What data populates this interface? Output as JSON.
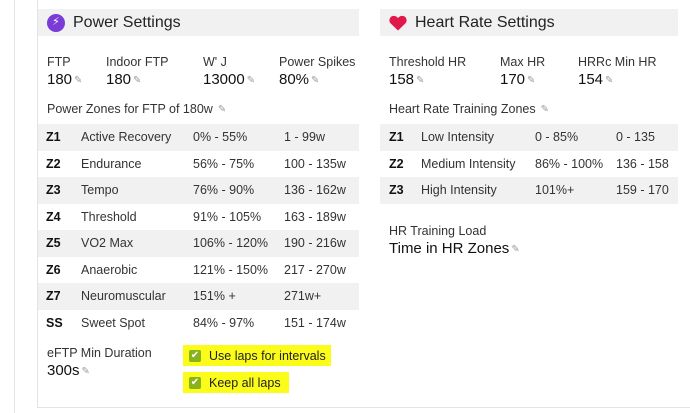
{
  "power": {
    "title": "Power Settings",
    "fields": [
      {
        "label": "FTP",
        "value": "180"
      },
      {
        "label": "Indoor FTP",
        "value": "180"
      },
      {
        "label": "W' J",
        "value": "13000"
      },
      {
        "label": "Power Spikes",
        "value": "80%"
      }
    ],
    "zones_title": "Power Zones for FTP of 180w",
    "zones": [
      {
        "code": "Z1",
        "name": "Active Recovery",
        "pct": "0% - 55%",
        "range": "1 - 99w"
      },
      {
        "code": "Z2",
        "name": "Endurance",
        "pct": "56% - 75%",
        "range": "100 - 135w"
      },
      {
        "code": "Z3",
        "name": "Tempo",
        "pct": "76% - 90%",
        "range": "136 - 162w"
      },
      {
        "code": "Z4",
        "name": "Threshold",
        "pct": "91% - 105%",
        "range": "163 - 189w"
      },
      {
        "code": "Z5",
        "name": "VO2 Max",
        "pct": "106% - 120%",
        "range": "190 - 216w"
      },
      {
        "code": "Z6",
        "name": "Anaerobic",
        "pct": "121% - 150%",
        "range": "217 - 270w"
      },
      {
        "code": "Z7",
        "name": "Neuromuscular",
        "pct": "151% +",
        "range": "271w+"
      },
      {
        "code": "SS",
        "name": "Sweet Spot",
        "pct": "84% - 97%",
        "range": "151 - 174w"
      }
    ],
    "eftp_label": "eFTP Min Duration",
    "eftp_value": "300s",
    "checkbox_laps": "Use laps for intervals",
    "checkbox_keep": "Keep all laps"
  },
  "hr": {
    "title": "Heart Rate Settings",
    "fields": [
      {
        "label": "Threshold HR",
        "value": "158"
      },
      {
        "label": "Max HR",
        "value": "170"
      },
      {
        "label": "HRRc Min HR",
        "value": "154"
      }
    ],
    "zones_title": "Heart Rate Training Zones",
    "zones": [
      {
        "code": "Z1",
        "name": "Low Intensity",
        "pct": "0 - 85%",
        "range": "0 - 135"
      },
      {
        "code": "Z2",
        "name": "Medium Intensity",
        "pct": "86% - 100%",
        "range": "136 - 158"
      },
      {
        "code": "Z3",
        "name": "High Intensity",
        "pct": "101%+",
        "range": "159 - 170"
      }
    ],
    "load_label": "HR Training Load",
    "load_value": "Time in HR Zones"
  },
  "icons": {
    "power": "lightning-bolt-icon",
    "hr": "heart-icon",
    "edit": "pencil-icon",
    "check": "checkmark-icon"
  },
  "colors": {
    "bolt": "#7a3cd6",
    "heart": "#e0194a",
    "checkbox": "#89b21d",
    "highlight": "#fcfc1a"
  }
}
